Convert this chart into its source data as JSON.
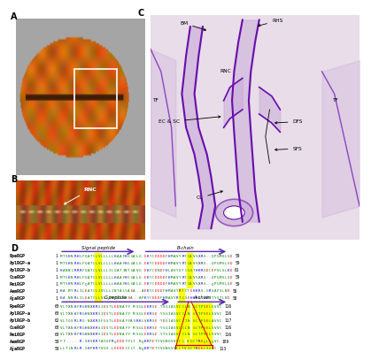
{
  "top_seqs": [
    [
      "PpeRGP",
      "1",
      "MTSHNRHLFQATCLVLLLLLHAAFHGGALG-EKYCDDDDFHMAVYRTCAVSXRS--QPGMSLSD",
      "59"
    ],
    [
      "AplRGP-a",
      "1",
      "MTSHNRHLFQATCLVLLLLLHAAFHGGALG-EKYCDDDDFHMAVYRTCAVSXRS--QPGMSLSD",
      "59"
    ],
    [
      "AplRGP-b",
      "1",
      "HANNLRRRFQATCLVLLLILQATINTGAVG-EKFCDNDFHLAVYQTCGSTHKRGDCEPVLSLKD",
      "61"
    ],
    [
      "CseRGP",
      "1",
      "MTSHNRHLFQATCLVLLLLLHAAFHGGALG-EKYCDDDDFHMAVYRTCAVSXRS--QPGMSLSD",
      "59"
    ],
    [
      "PmiRGP",
      "1",
      "MTSHNRHLFQATCLVLLLLLHAAFHGGALG-EKYCDDDDFHMAVYRTCAVSXRS--QPGMSLSD",
      "59"
    ],
    [
      "AamRGP",
      "1",
      "HA-MYRLILEATCLIVLLLINTALYAEA--AEKYCDEDFHMAVYRTCTEHKRS-GRSAFSLND",
      "58"
    ],
    [
      "AjaRGP",
      "1",
      "HA-NNRLILEATCLLVLLINTALYAEA--APKYCDEDFHMAVYRTCSEHKRS-GRSTYSTLND",
      "58"
    ]
  ],
  "bot_seqs": [
    [
      "PpeRGP",
      "60",
      "VLTXNKFRGHNXKRSIDSTLEDNAFF MSGLEKRSE-YSGIASVCCLN GCTPSELSVVC",
      "116"
    ],
    [
      "AplRGP-a",
      "60",
      "VLTXNKFRGHNXKRSIDSTLEDNAFF MSGLEKRSE-YSGIASVCCLN GCTPSELSVVC",
      "116"
    ],
    [
      "AplRGP-b",
      "62",
      "VLTGSRLRG-NXKRSFGSTLEDEAFFASRKLVKRSE-YDGIASVCCIN GCTPSELAVVC",
      "117"
    ],
    [
      "CseRGP",
      "60",
      "VLTXNKFRGHNXKRSIDSTLEDNAFF MSGLEKRSE-YSGIASVCCLN GCTPSELSVVC",
      "116"
    ],
    [
      "PmiRGP",
      "60",
      "VLTXNKFRGHNXKRSIDSTLEDNAFF MSGLEKRSE-YTGIASVCCLN GCTPSELSVVC",
      "116"
    ],
    [
      "AamRGP",
      "59",
      "FF-----R-SHSKRTAGSPRQDDDFFLT-NQKRPETYVGNGSVCCL VGCTRDQLSQVC",
      "109"
    ],
    [
      "AjaRGP",
      "59",
      "LLTLNRLR-SHPKRTVGS-LEDDDLYLT-NQKRTETYVGNGSVCCTVGCTREELSGVC",
      "113"
    ]
  ],
  "bg_color_A": "#c8a060",
  "bg_color_B": "#c86020",
  "bg_color_C": "#e8d8e8"
}
